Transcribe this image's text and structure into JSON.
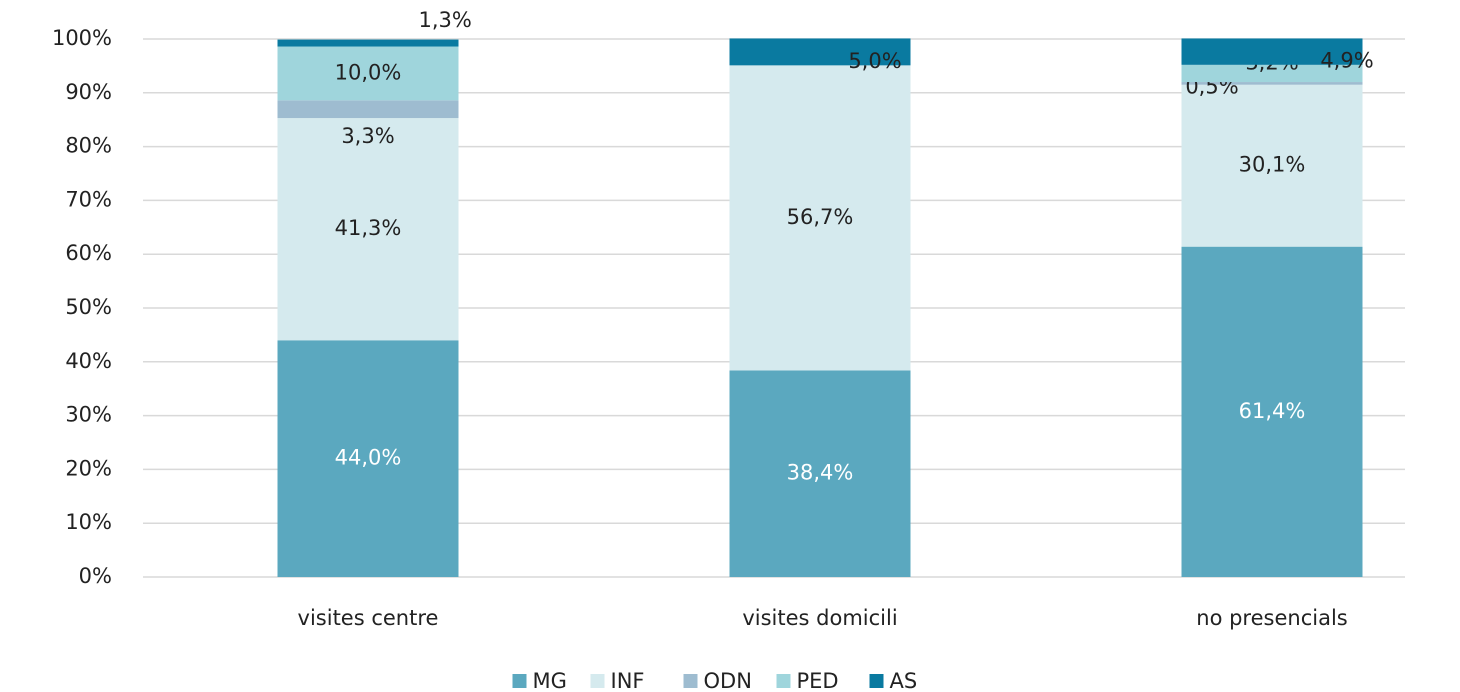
{
  "chart_data": {
    "type": "stacked_bar",
    "categories": [
      "visites centre",
      "visites domicili",
      "no presencials"
    ],
    "series": [
      {
        "name": "MG",
        "color": "#5ba8bf",
        "values": [
          44.0,
          38.4,
          61.4
        ],
        "value_labels": [
          "44,0%",
          "38,4%",
          "61,4%"
        ]
      },
      {
        "name": "INF",
        "color": "#d5eaee",
        "values": [
          41.3,
          56.7,
          30.1
        ],
        "value_labels": [
          "41,3%",
          "56,7%",
          "30,1%"
        ]
      },
      {
        "name": "ODN",
        "color": "#9ebcd0",
        "values": [
          3.3,
          null,
          0.5
        ],
        "value_labels": [
          "3,3%",
          null,
          "0,5%"
        ]
      },
      {
        "name": "PED",
        "color": "#9fd5dc",
        "values": [
          10.0,
          null,
          3.2
        ],
        "value_labels": [
          "10,0%",
          null,
          "3,2%"
        ]
      },
      {
        "name": "AS",
        "color": "#0a7aa0",
        "values": [
          1.3,
          5.0,
          4.9
        ],
        "value_labels": [
          "1,3%",
          "5,0%",
          "4,9%"
        ]
      }
    ],
    "ylim": [
      0,
      100
    ],
    "yticks": [
      {
        "value": 0,
        "label": "0%"
      },
      {
        "value": 10,
        "label": "10%"
      },
      {
        "value": 20,
        "label": "20%"
      },
      {
        "value": 30,
        "label": "30%"
      },
      {
        "value": 40,
        "label": "40%"
      },
      {
        "value": 50,
        "label": "50%"
      },
      {
        "value": 60,
        "label": "60%"
      },
      {
        "value": 70,
        "label": "70%"
      },
      {
        "value": 80,
        "label": "80%"
      },
      {
        "value": 90,
        "label": "90%"
      },
      {
        "value": 100,
        "label": "100%"
      }
    ],
    "grid": true,
    "legend": "bottom"
  }
}
